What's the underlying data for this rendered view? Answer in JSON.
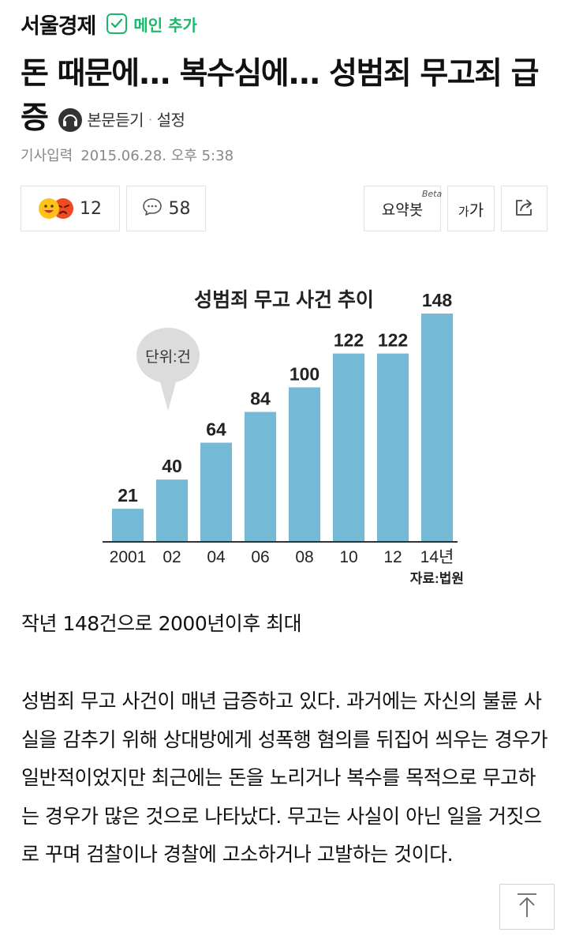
{
  "header": {
    "press_name": "서울경제",
    "subscribe_label": "메인 추가"
  },
  "article": {
    "title": "돈 때문에... 복수심에... 성범죄 무고죄 급증",
    "tts_label": "본문듣기",
    "tts_separator": "·",
    "settings_label": "설정",
    "meta_label": "기사입력",
    "meta_time": "2015.06.28. 오후 5:38",
    "caption": "작년 148건으로 2000년이후 최대",
    "body": "성범죄 무고 사건이 매년 급증하고 있다. 과거에는 자신의 불륜 사실을 감추기 위해 상대방에게 성폭행 혐의를 뒤집어 씌우는 경우가 일반적이었지만 최근에는 돈을 노리거나 복수를 목적으로 무고하는 경우가 많은 것으로 나타났다. 무고는 사실이 아닌 일을 거짓으로 꾸며 검찰이나 경찰에 고소하거나 고발하는 것이다."
  },
  "toolbar": {
    "reaction_count": "12",
    "comment_count": "58",
    "summary_label": "요약봇",
    "summary_badge": "Beta",
    "font_small": "가",
    "font_large": "가"
  },
  "chart_data": {
    "type": "bar",
    "title": "성범죄 무고 사건 추이",
    "unit_label": "단위:건",
    "source": "자료:법원",
    "categories": [
      "2001",
      "02",
      "04",
      "06",
      "08",
      "10",
      "12",
      "14년"
    ],
    "values": [
      21,
      40,
      64,
      84,
      100,
      122,
      122,
      148
    ],
    "ylim": [
      0,
      148
    ],
    "grid": false,
    "bar_color": "#74b9d5"
  },
  "colors": {
    "accent": "#19b86a",
    "text": "#111111",
    "meta": "#888888"
  },
  "icons": {
    "subscribe": "check-icon",
    "tts": "headphone-icon",
    "comment": "speech-bubble-icon",
    "share": "share-icon",
    "scroll_top": "arrow-up-icon"
  }
}
